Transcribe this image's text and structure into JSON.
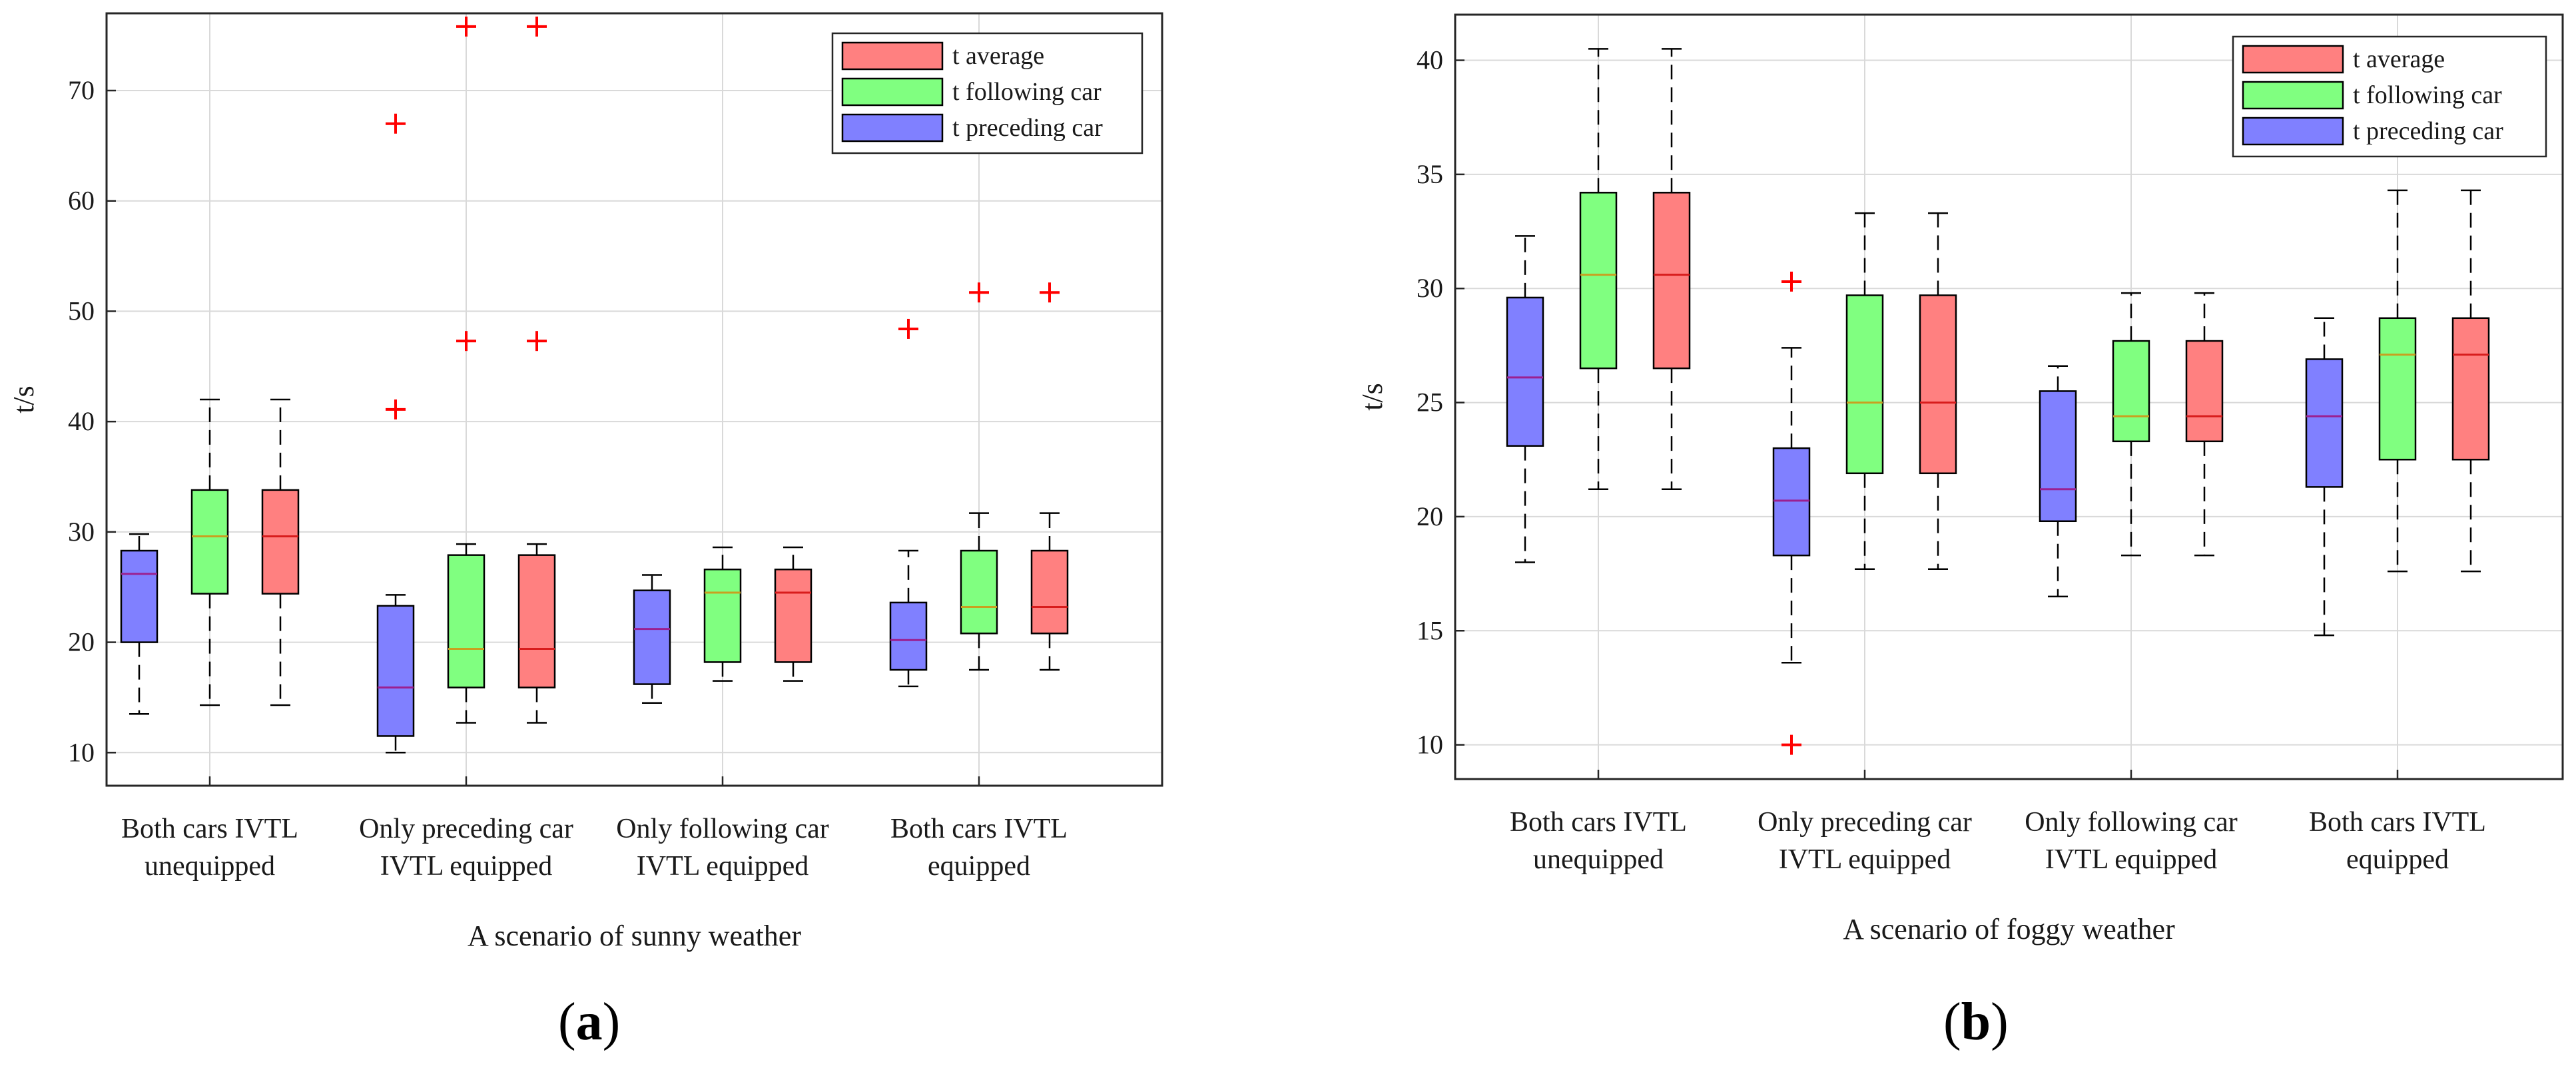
{
  "colors": {
    "preceding": "#8080ff",
    "following": "#80ff80",
    "average": "#ff8080",
    "median_preceding": "#9b2090",
    "median_following": "#c8a020",
    "median_average": "#d81c1c",
    "outlier": "#ff0000",
    "grid": "#d9d9d9",
    "axis": "#262626"
  },
  "panels": [
    {
      "label_open": "(",
      "label_letter": "a",
      "label_close": ")"
    },
    {
      "label_open": "(",
      "label_letter": "b",
      "label_close": ")"
    }
  ],
  "chart_data": [
    {
      "type": "boxplot",
      "title": "",
      "xlabel": "A scenario of sunny weather",
      "ylabel": "t/s",
      "ylim": [
        7,
        77
      ],
      "yticks": [
        10,
        20,
        30,
        40,
        50,
        60,
        70
      ],
      "grid": true,
      "legend_position": "top-right",
      "groups": [
        [
          "Both cars IVTL",
          "unequipped"
        ],
        [
          "Only preceding car",
          "IVTL equipped"
        ],
        [
          "Only following car",
          "IVTL equipped"
        ],
        [
          "Both cars IVTL",
          "equipped"
        ]
      ],
      "legend": [
        {
          "series": "average",
          "label": "t average"
        },
        {
          "series": "following",
          "label": "t following car"
        },
        {
          "series": "preceding",
          "label": "t preceding car"
        }
      ],
      "boxes": [
        {
          "group": 0,
          "series": "preceding",
          "min": 13.5,
          "q1": 20,
          "median": 26.2,
          "q3": 28.3,
          "max": 29.8,
          "outliers": []
        },
        {
          "group": 0,
          "series": "following",
          "min": 14.3,
          "q1": 24.4,
          "median": 29.6,
          "q3": 33.8,
          "max": 42.0,
          "outliers": []
        },
        {
          "group": 0,
          "series": "average",
          "min": 14.3,
          "q1": 24.4,
          "median": 29.6,
          "q3": 33.8,
          "max": 42.0,
          "outliers": []
        },
        {
          "group": 1,
          "series": "preceding",
          "min": 10,
          "q1": 11.5,
          "median": 15.9,
          "q3": 23.3,
          "max": 24.3,
          "outliers": [
            41.1,
            67.0
          ]
        },
        {
          "group": 1,
          "series": "following",
          "min": 12.7,
          "q1": 15.9,
          "median": 19.4,
          "q3": 27.9,
          "max": 28.9,
          "outliers": [
            47.3,
            75.8
          ]
        },
        {
          "group": 1,
          "series": "average",
          "min": 12.7,
          "q1": 15.9,
          "median": 19.4,
          "q3": 27.9,
          "max": 28.9,
          "outliers": [
            47.3,
            75.8
          ]
        },
        {
          "group": 2,
          "series": "preceding",
          "min": 14.5,
          "q1": 16.2,
          "median": 21.2,
          "q3": 24.7,
          "max": 26.1,
          "outliers": []
        },
        {
          "group": 2,
          "series": "following",
          "min": 16.5,
          "q1": 18.2,
          "median": 24.5,
          "q3": 26.6,
          "max": 28.6,
          "outliers": []
        },
        {
          "group": 2,
          "series": "average",
          "min": 16.5,
          "q1": 18.2,
          "median": 24.5,
          "q3": 26.6,
          "max": 28.6,
          "outliers": []
        },
        {
          "group": 3,
          "series": "preceding",
          "min": 16,
          "q1": 17.5,
          "median": 20.2,
          "q3": 23.6,
          "max": 28.3,
          "outliers": [
            48.4
          ]
        },
        {
          "group": 3,
          "series": "following",
          "min": 17.5,
          "q1": 20.8,
          "median": 23.2,
          "q3": 28.3,
          "max": 31.7,
          "outliers": [
            51.7
          ]
        },
        {
          "group": 3,
          "series": "average",
          "min": 17.5,
          "q1": 20.8,
          "median": 23.2,
          "q3": 28.3,
          "max": 31.7,
          "outliers": [
            51.7
          ]
        }
      ]
    },
    {
      "type": "boxplot",
      "title": "",
      "xlabel": "A scenario of foggy weather",
      "ylabel": "t/s",
      "ylim": [
        8.5,
        42
      ],
      "yticks": [
        10,
        15,
        20,
        25,
        30,
        35,
        40
      ],
      "grid": true,
      "legend_position": "top-right",
      "groups": [
        [
          "Both cars IVTL",
          "unequipped"
        ],
        [
          "Only preceding car",
          "IVTL equipped"
        ],
        [
          "Only following car",
          "IVTL equipped"
        ],
        [
          "Both cars IVTL",
          "equipped"
        ]
      ],
      "legend": [
        {
          "series": "average",
          "label": "t average"
        },
        {
          "series": "following",
          "label": "t following car"
        },
        {
          "series": "preceding",
          "label": "t preceding car"
        }
      ],
      "boxes": [
        {
          "group": 0,
          "series": "preceding",
          "min": 18,
          "q1": 23.1,
          "median": 26.1,
          "q3": 29.6,
          "max": 32.3,
          "outliers": []
        },
        {
          "group": 0,
          "series": "following",
          "min": 21.2,
          "q1": 26.5,
          "median": 30.6,
          "q3": 34.2,
          "max": 40.5,
          "outliers": []
        },
        {
          "group": 0,
          "series": "average",
          "min": 21.2,
          "q1": 26.5,
          "median": 30.6,
          "q3": 34.2,
          "max": 40.5,
          "outliers": []
        },
        {
          "group": 1,
          "series": "preceding",
          "min": 13.6,
          "q1": 18.3,
          "median": 20.7,
          "q3": 23.0,
          "max": 27.4,
          "outliers": [
            30.3,
            10.0
          ]
        },
        {
          "group": 1,
          "series": "following",
          "min": 17.7,
          "q1": 21.9,
          "median": 25.0,
          "q3": 29.7,
          "max": 33.3,
          "outliers": []
        },
        {
          "group": 1,
          "series": "average",
          "min": 17.7,
          "q1": 21.9,
          "median": 25.0,
          "q3": 29.7,
          "max": 33.3,
          "outliers": []
        },
        {
          "group": 2,
          "series": "preceding",
          "min": 16.5,
          "q1": 19.8,
          "median": 21.2,
          "q3": 25.5,
          "max": 26.6,
          "outliers": []
        },
        {
          "group": 2,
          "series": "following",
          "min": 18.3,
          "q1": 23.3,
          "median": 24.4,
          "q3": 27.7,
          "max": 29.8,
          "outliers": []
        },
        {
          "group": 2,
          "series": "average",
          "min": 18.3,
          "q1": 23.3,
          "median": 24.4,
          "q3": 27.7,
          "max": 29.8,
          "outliers": []
        },
        {
          "group": 3,
          "series": "preceding",
          "min": 14.8,
          "q1": 21.3,
          "median": 24.4,
          "q3": 26.9,
          "max": 28.7,
          "outliers": []
        },
        {
          "group": 3,
          "series": "following",
          "min": 17.6,
          "q1": 22.5,
          "median": 27.1,
          "q3": 28.7,
          "max": 34.3,
          "outliers": []
        },
        {
          "group": 3,
          "series": "average",
          "min": 17.6,
          "q1": 22.5,
          "median": 27.1,
          "q3": 28.7,
          "max": 34.3,
          "outliers": []
        }
      ]
    }
  ]
}
